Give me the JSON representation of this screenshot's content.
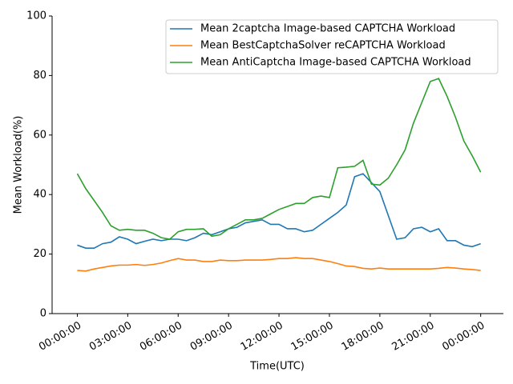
{
  "chart_data": {
    "type": "line",
    "x_label": "Time(UTC)",
    "y_label": "Mean Workload(%)",
    "x": [
      0,
      0.5,
      1,
      1.5,
      2,
      2.5,
      3,
      3.5,
      4,
      4.5,
      5,
      5.5,
      6,
      6.5,
      7,
      7.5,
      8,
      8.5,
      9,
      9.5,
      10,
      10.5,
      11,
      11.5,
      12,
      12.5,
      13,
      13.5,
      14,
      14.5,
      15,
      15.5,
      16,
      16.5,
      17,
      17.5,
      18,
      18.5,
      19,
      19.5,
      20,
      20.5,
      21,
      21.5,
      22,
      22.5,
      23,
      23.5,
      24
    ],
    "series": [
      {
        "name": "Mean 2captcha Image-based CAPTCHA Workload",
        "color": "#1f77b4",
        "values": [
          23,
          22,
          22,
          23.5,
          24,
          25.8,
          25,
          23.5,
          24.3,
          25,
          24.5,
          25,
          25,
          24.5,
          25.5,
          27,
          26.5,
          27.5,
          28.5,
          29,
          30.5,
          31,
          31.5,
          30,
          30,
          28.5,
          28.5,
          27.5,
          28,
          30,
          32,
          34,
          36.5,
          46,
          47,
          44,
          41,
          33,
          25,
          25.5,
          28.5,
          29,
          27.5,
          28.5,
          24.5,
          24.5,
          23,
          22.5,
          23.5
        ]
      },
      {
        "name": "Mean BestCaptchaSolver reCAPTCHA Workload",
        "color": "#ff7f0e",
        "values": [
          14.5,
          14.3,
          15,
          15.5,
          16,
          16.3,
          16.3,
          16.5,
          16.2,
          16.5,
          17,
          17.8,
          18.5,
          18,
          18,
          17.5,
          17.5,
          18,
          17.8,
          17.8,
          18,
          18,
          18,
          18.2,
          18.5,
          18.5,
          18.8,
          18.5,
          18.5,
          18,
          17.5,
          16.8,
          16,
          15.8,
          15.2,
          15,
          15.3,
          15,
          15,
          15,
          15,
          15,
          15,
          15.2,
          15.5,
          15.3,
          15,
          14.8,
          14.5
        ]
      },
      {
        "name": "Mean AntiCaptcha Image-based CAPTCHA Workload",
        "color": "#2ca02c",
        "values": [
          47,
          42,
          38,
          34,
          29.5,
          28,
          28.3,
          28,
          28,
          27,
          25.5,
          25,
          27.5,
          28.3,
          28.3,
          28.5,
          26,
          26.5,
          28.5,
          30,
          31.5,
          31.5,
          32,
          33.5,
          35,
          36,
          37,
          37,
          39,
          39.5,
          39,
          49,
          49.2,
          49.5,
          51.5,
          43.5,
          43.2,
          45.5,
          50,
          55,
          64,
          71,
          78,
          79,
          73,
          66,
          58,
          53,
          47.5
        ]
      }
    ],
    "xlim": [
      -1.5,
      25.35
    ],
    "xticks": [
      {
        "value": 0,
        "label": "00:00:00"
      },
      {
        "value": 3,
        "label": "03:00:00"
      },
      {
        "value": 6,
        "label": "06:00:00"
      },
      {
        "value": 9,
        "label": "09:00:00"
      },
      {
        "value": 12,
        "label": "12:00:00"
      },
      {
        "value": 15,
        "label": "15:00:00"
      },
      {
        "value": 18,
        "label": "18:00:00"
      },
      {
        "value": 21,
        "label": "21:00:00"
      },
      {
        "value": 24,
        "label": "00:00:00"
      }
    ],
    "ylim": [
      0,
      100
    ],
    "yticks": [
      0,
      20,
      40,
      60,
      80,
      100
    ],
    "legend": "upper-right",
    "grid": false
  }
}
